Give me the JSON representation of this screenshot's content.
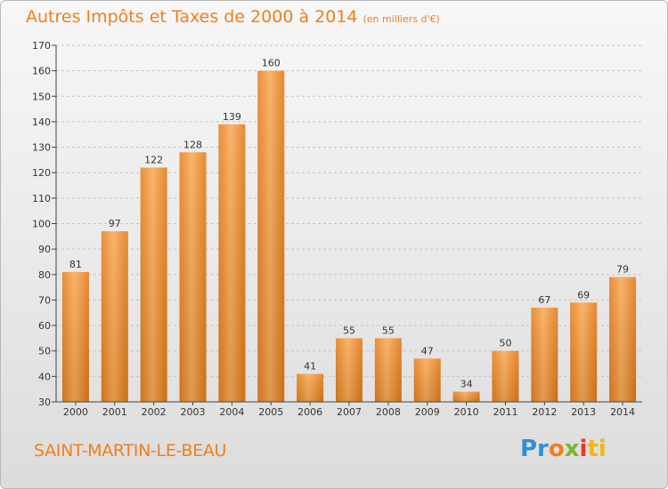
{
  "title": "Autres Impôts et Taxes de 2000 à 2014",
  "subtitle": "(en milliers d'€)",
  "location": "SAINT-MARTIN-LE-BEAU",
  "logo": {
    "p1": "Pr",
    "p2": "o",
    "p3": "x",
    "p4": "i",
    "p5": "ti"
  },
  "colors": {
    "accent": "#f07f1c",
    "bar_light": "#f9aa58",
    "bar_dark": "#e5811f"
  },
  "chart_data": {
    "type": "bar",
    "title": "Autres Impôts et Taxes de 2000 à 2014",
    "subtitle": "(en milliers d'€)",
    "xlabel": "",
    "ylabel": "",
    "categories": [
      "2000",
      "2001",
      "2002",
      "2003",
      "2004",
      "2005",
      "2006",
      "2007",
      "2008",
      "2009",
      "2010",
      "2011",
      "2012",
      "2013",
      "2014"
    ],
    "values": [
      81,
      97,
      122,
      128,
      139,
      160,
      41,
      55,
      55,
      47,
      34,
      50,
      67,
      69,
      79
    ],
    "ylim": [
      30,
      170
    ],
    "yticks": [
      30,
      40,
      50,
      60,
      70,
      80,
      90,
      100,
      110,
      120,
      130,
      140,
      150,
      160,
      170
    ],
    "grid": "horizontal dashed",
    "data_labels": true
  }
}
